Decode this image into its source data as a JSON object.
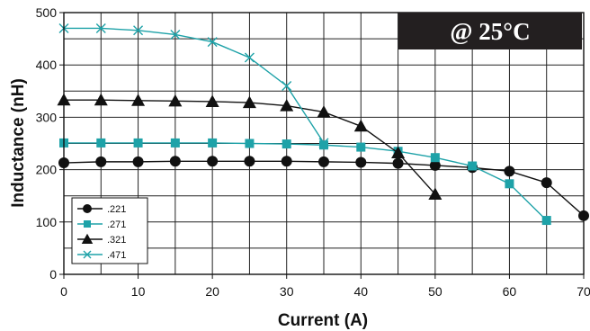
{
  "chart_data": {
    "type": "line",
    "title": "",
    "annotation": "@ 25°C",
    "xlabel": "Current (A)",
    "ylabel": "Inductance (nH)",
    "xlim": [
      0,
      70
    ],
    "ylim": [
      0,
      500
    ],
    "xticks": [
      0,
      10,
      20,
      30,
      40,
      50,
      60,
      70
    ],
    "yticks": [
      0,
      100,
      200,
      300,
      400,
      500
    ],
    "grid": true,
    "legend_position": "bottom-left",
    "series": [
      {
        "name": ".221",
        "color": "#111111",
        "marker": "circle",
        "points": [
          [
            0,
            213
          ],
          [
            5,
            215
          ],
          [
            10,
            215
          ],
          [
            15,
            216
          ],
          [
            20,
            216
          ],
          [
            25,
            216
          ],
          [
            30,
            216
          ],
          [
            35,
            215
          ],
          [
            40,
            214
          ],
          [
            45,
            212
          ],
          [
            50,
            208
          ],
          [
            55,
            204
          ],
          [
            60,
            197
          ],
          [
            65,
            175
          ],
          [
            70,
            112
          ]
        ]
      },
      {
        "name": ".271",
        "color": "#1ea2a8",
        "marker": "square",
        "points": [
          [
            0,
            251
          ],
          [
            5,
            251
          ],
          [
            10,
            251
          ],
          [
            15,
            251
          ],
          [
            20,
            251
          ],
          [
            25,
            250
          ],
          [
            30,
            249
          ],
          [
            35,
            247
          ],
          [
            40,
            243
          ],
          [
            45,
            235
          ],
          [
            50,
            223
          ],
          [
            55,
            207
          ],
          [
            60,
            173
          ],
          [
            65,
            103
          ]
        ]
      },
      {
        "name": ".321",
        "color": "#111111",
        "marker": "triangle",
        "points": [
          [
            0,
            333
          ],
          [
            5,
            333
          ],
          [
            10,
            332
          ],
          [
            15,
            331
          ],
          [
            20,
            330
          ],
          [
            25,
            328
          ],
          [
            30,
            322
          ],
          [
            35,
            310
          ],
          [
            40,
            283
          ],
          [
            45,
            232
          ],
          [
            50,
            153
          ]
        ]
      },
      {
        "name": ".471",
        "color": "#1ea2a8",
        "marker": "x",
        "points": [
          [
            0,
            470
          ],
          [
            5,
            470
          ],
          [
            10,
            466
          ],
          [
            15,
            458
          ],
          [
            20,
            444
          ],
          [
            25,
            414
          ],
          [
            30,
            360
          ],
          [
            35,
            251
          ]
        ]
      }
    ]
  }
}
